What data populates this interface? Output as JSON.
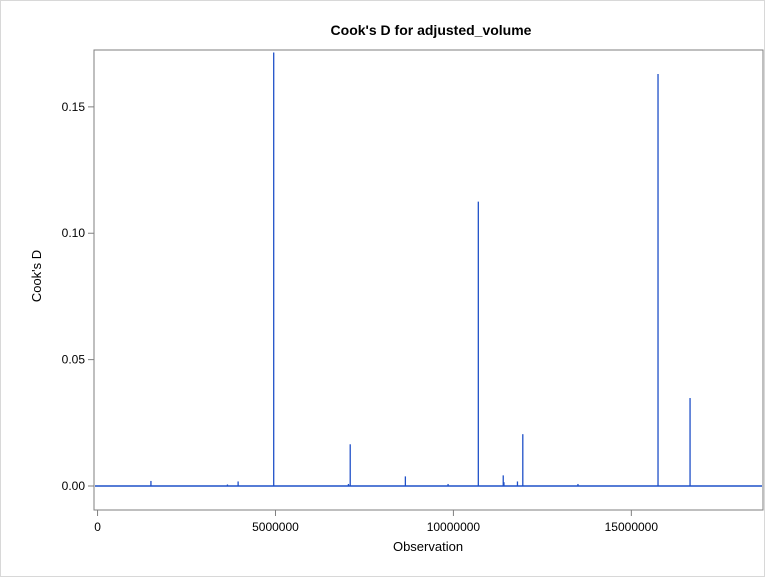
{
  "chart_data": {
    "type": "needle",
    "title": "Cook's D for adjusted_volume",
    "xlabel": "Observation",
    "ylabel": "Cook's D",
    "xlim": [
      -100000,
      18700000
    ],
    "ylim": [
      -0.0095,
      0.1725
    ],
    "x_ticks": [
      0,
      5000000,
      10000000,
      15000000
    ],
    "x_tick_labels": [
      "0",
      "5000000",
      "10000000",
      "15000000"
    ],
    "y_ticks": [
      0.0,
      0.05,
      0.1,
      0.15
    ],
    "y_tick_labels": [
      "0.00",
      "0.05",
      "0.10",
      "0.15"
    ],
    "grid": false,
    "legend": "none",
    "series": [
      {
        "x": [
          1500000,
          3650000,
          3950000,
          4950000,
          7050000,
          7100000,
          8650000,
          9850000,
          10700000,
          11400000,
          11420000,
          11800000,
          11950000,
          13500000,
          15750000,
          16650000
        ],
        "y": [
          0.002,
          0.0006,
          0.0018,
          0.1715,
          0.0008,
          0.0165,
          0.0038,
          0.0008,
          0.1125,
          0.0042,
          0.0015,
          0.0018,
          0.0205,
          0.0008,
          0.163,
          0.0348
        ]
      }
    ],
    "colors": {
      "line": "#1f50c8",
      "frame": "#7f7f7f",
      "text": "#000000"
    }
  }
}
